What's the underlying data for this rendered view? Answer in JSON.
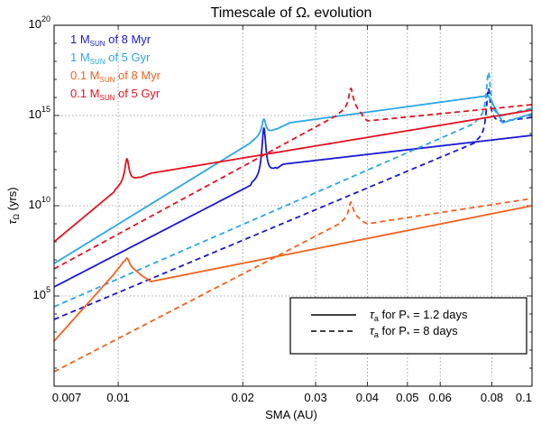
{
  "chart_data": {
    "type": "line",
    "title_prefix": "Timescale of ",
    "title_symbol": "Ω",
    "title_sub": "*",
    "title_suffix": " evolution",
    "xlabel": "SMA (AU)",
    "ylabel_main": "τ",
    "ylabel_sub": "Ω",
    "ylabel_unit": " (yrs)",
    "xscale": "log",
    "yscale": "log",
    "xlim": [
      0.007,
      0.1
    ],
    "ylim": [
      1,
      100000000000000000000
    ],
    "xticks": [
      {
        "value": 0.007,
        "label": "0.007"
      },
      {
        "value": 0.01,
        "label": "0.01"
      },
      {
        "value": 0.02,
        "label": "0.02"
      },
      {
        "value": 0.03,
        "label": "0.03"
      },
      {
        "value": 0.04,
        "label": "0.04"
      },
      {
        "value": 0.05,
        "label": "0.05"
      },
      {
        "value": 0.06,
        "label": "0.06"
      },
      {
        "value": 0.08,
        "label": "0.08"
      },
      {
        "value": 0.1,
        "label": "0.1"
      }
    ],
    "yticks": [
      {
        "exp": 5,
        "base": "10",
        "pow": "5"
      },
      {
        "exp": 10,
        "base": "10",
        "pow": "10"
      },
      {
        "exp": 15,
        "base": "10",
        "pow": "15"
      },
      {
        "exp": 20,
        "base": "10",
        "pow": "20"
      }
    ],
    "grid": true,
    "series": [
      {
        "name": "1 M_SUN of 8 Myr",
        "label_main": "1 M",
        "label_sub": "SUN",
        "label_tail": " of 8 Myr",
        "color": "#1a1ad0",
        "solid": {
          "x": [
            0.007,
            0.022,
            0.025,
            0.1
          ],
          "y": [
            5.5,
            11.4,
            12.3,
            13.9
          ],
          "spike": {
            "x": 0.0225,
            "peak": 14.3
          }
        },
        "dashed": {
          "x": [
            0.007,
            0.0785,
            0.08,
            0.1
          ],
          "y": [
            3.7,
            13.8,
            14.6,
            14.9
          ],
          "spike": {
            "x": 0.0785,
            "peak": 16.5
          }
        }
      },
      {
        "name": "1 M_SUN of 5 Gyr",
        "label_main": "1 M",
        "label_sub": "SUN",
        "label_tail": " of 5 Gyr",
        "color": "#2ba6e8",
        "solid": {
          "x": [
            0.007,
            0.022,
            0.026,
            0.0785,
            0.085,
            0.1
          ],
          "y": [
            6.8,
            13.8,
            14.6,
            16.1,
            14.6,
            15.1
          ],
          "spike": {
            "x": 0.0225,
            "peak": 14.8
          }
        },
        "dashed": {
          "x": [
            0.007,
            0.0785,
            0.085,
            0.1
          ],
          "y": [
            4.4,
            14.9,
            15.0,
            15.4
          ],
          "spike": {
            "x": 0.0785,
            "peak": 17.4
          }
        }
      },
      {
        "name": "0.1 M_SUN of 8 Myr",
        "label_main": "0.1 M",
        "label_sub": "SUN",
        "label_tail": " of 8 Myr",
        "color": "#f0621e",
        "solid": {
          "x": [
            0.007,
            0.0103,
            0.012,
            0.1
          ],
          "y": [
            2.5,
            6.8,
            5.8,
            10.0
          ],
          "spike": {
            "x": 0.0105,
            "peak": 7.1
          }
        },
        "dashed": {
          "x": [
            0.007,
            0.037,
            0.04,
            0.1
          ],
          "y": [
            0.8,
            9.4,
            9.0,
            10.4
          ],
          "spike": {
            "x": 0.0365,
            "peak": 10.2
          }
        }
      },
      {
        "name": "0.1 M_SUN of 5 Gyr",
        "label_main": "0.1 M",
        "label_sub": "SUN",
        "label_tail": " of 5 Gyr",
        "color": "#e2141e",
        "solid": {
          "x": [
            0.007,
            0.0103,
            0.012,
            0.1
          ],
          "y": [
            8.0,
            11.2,
            11.8,
            15.3
          ],
          "spike": {
            "x": 0.0105,
            "peak": 12.6
          }
        },
        "dashed": {
          "x": [
            0.007,
            0.037,
            0.04,
            0.1
          ],
          "y": [
            6.5,
            15.5,
            14.7,
            15.6
          ],
          "spike": {
            "x": 0.0365,
            "peak": 16.5
          }
        }
      }
    ],
    "style_legend": [
      {
        "style": "solid",
        "main": "τ",
        "sub": "a",
        "text": " for P",
        "star": "*",
        "tail": " = 1.2 days"
      },
      {
        "style": "dashed",
        "main": "τ",
        "sub": "a",
        "text": " for P",
        "star": "*",
        "tail": " = 8 days"
      }
    ]
  }
}
